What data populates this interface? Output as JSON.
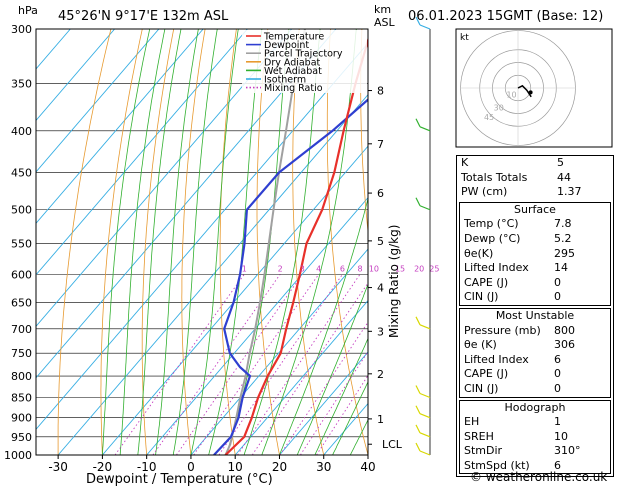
{
  "header": {
    "location": "45°26'N  9°17'E  132m  ASL",
    "datetime": "06.01.2023  15GMT  (Base: 12)",
    "left_unit": "hPa",
    "right_unit_km": "km",
    "right_unit_asl": "ASL"
  },
  "chart_data": {
    "type": "line",
    "xlabel": "Dewpoint / Temperature (°C)",
    "ylabel_left": "hPa",
    "ylabel_right": "Mixing Ratio (g/kg)",
    "xlim": [
      -35,
      40
    ],
    "ylim": [
      1000,
      300
    ],
    "x_ticks": [
      -30,
      -20,
      -10,
      0,
      10,
      20,
      30,
      40
    ],
    "pressure_ticks": [
      300,
      350,
      400,
      450,
      500,
      550,
      600,
      650,
      700,
      750,
      800,
      850,
      900,
      950,
      1000
    ],
    "km_ticks": [
      {
        "label": "8",
        "p": 357
      },
      {
        "label": "7",
        "p": 415
      },
      {
        "label": "6",
        "p": 477
      },
      {
        "label": "5",
        "p": 546
      },
      {
        "label": "4",
        "p": 623
      },
      {
        "label": "3",
        "p": 705
      },
      {
        "label": "2",
        "p": 795
      },
      {
        "label": "1",
        "p": 903
      }
    ],
    "lcl": {
      "label": "LCL",
      "p": 970
    },
    "mixing_ratio_labels": [
      "1",
      "2",
      "3",
      "4",
      "6",
      "8",
      "10",
      "15",
      "20",
      "25"
    ],
    "legend": [
      {
        "name": "Temperature",
        "color": "#e8302a",
        "style": "solid"
      },
      {
        "name": "Dewpoint",
        "color": "#2f3fd0",
        "style": "solid"
      },
      {
        "name": "Parcel Trajectory",
        "color": "#a0a0a0",
        "style": "solid"
      },
      {
        "name": "Dry Adiabat",
        "color": "#e79a30",
        "style": "solid"
      },
      {
        "name": "Wet Adiabat",
        "color": "#31b02f",
        "style": "solid"
      },
      {
        "name": "Isotherm",
        "color": "#36aee3",
        "style": "solid"
      },
      {
        "name": "Mixing Ratio",
        "color": "#c53fc0",
        "style": "dotted"
      }
    ],
    "series": [
      {
        "name": "Temperature",
        "color": "#e8302a",
        "points": [
          [
            1000,
            7.8
          ],
          [
            950,
            8.5
          ],
          [
            900,
            6.5
          ],
          [
            850,
            4.0
          ],
          [
            800,
            2.0
          ],
          [
            750,
            0.5
          ],
          [
            700,
            -3.0
          ],
          [
            650,
            -6.5
          ],
          [
            600,
            -10.5
          ],
          [
            550,
            -15.0
          ],
          [
            500,
            -18.0
          ],
          [
            450,
            -22.5
          ],
          [
            400,
            -28.5
          ],
          [
            350,
            -35.0
          ],
          [
            300,
            -42.0
          ]
        ]
      },
      {
        "name": "Dewpoint",
        "color": "#2f3fd0",
        "points": [
          [
            1000,
            5.2
          ],
          [
            950,
            5.5
          ],
          [
            900,
            3.5
          ],
          [
            850,
            0.5
          ],
          [
            800,
            -2.0
          ],
          [
            780,
            -6.0
          ],
          [
            750,
            -11.0
          ],
          [
            700,
            -17.0
          ],
          [
            650,
            -20.0
          ],
          [
            600,
            -24.0
          ],
          [
            550,
            -29.0
          ],
          [
            500,
            -35.0
          ],
          [
            450,
            -35.0
          ],
          [
            400,
            -31.0
          ],
          [
            350,
            -28.0
          ],
          [
            300,
            -35.0
          ]
        ]
      },
      {
        "name": "Parcel Trajectory",
        "color": "#a0a0a0",
        "points": [
          [
            1000,
            7.8
          ],
          [
            970,
            6.8
          ],
          [
            900,
            3.0
          ],
          [
            850,
            0.0
          ],
          [
            800,
            -3.0
          ],
          [
            750,
            -6.5
          ],
          [
            700,
            -10.0
          ],
          [
            650,
            -14.0
          ],
          [
            600,
            -18.5
          ],
          [
            550,
            -23.5
          ],
          [
            500,
            -29.0
          ],
          [
            450,
            -35.0
          ],
          [
            400,
            -41.5
          ],
          [
            350,
            -49.0
          ],
          [
            300,
            -57.0
          ]
        ]
      }
    ],
    "wind_barbs_p": [
      1000,
      950,
      900,
      850,
      700,
      500,
      400,
      300
    ]
  },
  "indices": [
    {
      "label": "K",
      "value": "5"
    },
    {
      "label": "Totals Totals",
      "value": "44"
    },
    {
      "label": "PW (cm)",
      "value": "1.37"
    }
  ],
  "surface": {
    "title": "Surface",
    "rows": [
      {
        "label": "Temp (°C)",
        "value": "7.8"
      },
      {
        "label": "Dewp (°C)",
        "value": "5.2"
      },
      {
        "label": "θe(K)",
        "value": "295"
      },
      {
        "label": "Lifted Index",
        "value": "14"
      },
      {
        "label": "CAPE (J)",
        "value": "0"
      },
      {
        "label": "CIN (J)",
        "value": "0"
      }
    ]
  },
  "most_unstable": {
    "title": "Most Unstable",
    "rows": [
      {
        "label": "Pressure (mb)",
        "value": "800"
      },
      {
        "label": "θe (K)",
        "value": "306"
      },
      {
        "label": "Lifted Index",
        "value": "6"
      },
      {
        "label": "CAPE (J)",
        "value": "0"
      },
      {
        "label": "CIN (J)",
        "value": "0"
      }
    ]
  },
  "hodograph_table": {
    "title": "Hodograph",
    "rows": [
      {
        "label": "EH",
        "value": "1"
      },
      {
        "label": "SREH",
        "value": "10"
      },
      {
        "label": "StmDir",
        "value": "310°"
      },
      {
        "label": "StmSpd (kt)",
        "value": "6"
      }
    ]
  },
  "hodograph_plot": {
    "unit_label": "kt",
    "ring_labels": [
      "10",
      "30",
      "45"
    ],
    "trace_uv": [
      [
        0,
        0
      ],
      [
        2,
        1
      ],
      [
        4,
        -1
      ],
      [
        6,
        -4
      ]
    ],
    "storm_uv": [
      3,
      -2
    ]
  },
  "footer": {
    "copyright": "© weatheronline.co.uk"
  }
}
